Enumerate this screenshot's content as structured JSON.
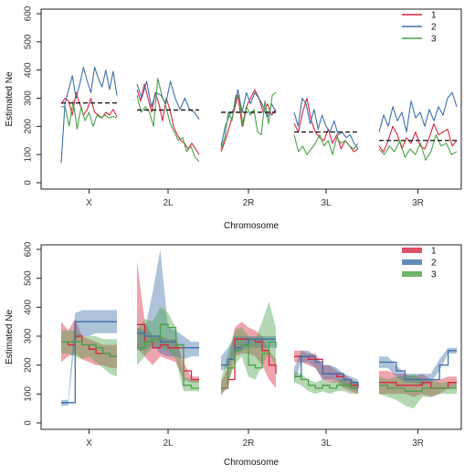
{
  "colors": {
    "1": "#d7263d",
    "2": "#3f6fa8",
    "3": "#4aa14a",
    "mean": "#111111"
  },
  "chart_data": [
    {
      "type": "line",
      "xlabel": "Chromosome",
      "ylabel": "Estimated Ne",
      "ylim": [
        0,
        600
      ],
      "yticks": [
        0,
        100,
        200,
        300,
        400,
        500,
        600
      ],
      "categories": [
        "X",
        "2L",
        "2R",
        "3L",
        "3R"
      ],
      "legend": {
        "placement": "top-right",
        "entries": [
          "1",
          "2",
          "3"
        ]
      },
      "series": [
        {
          "name": "1",
          "segments": [
            [
              280,
              300,
              290,
              240,
              320,
              280,
              240,
              260,
              300,
              250,
              240,
              230,
              250,
              240,
              260,
              235
            ],
            [
              330,
              290,
              350,
              300,
              250,
              320,
              280,
              220,
              300,
              260,
              200,
              170,
              150,
              140,
              120,
              140,
              120,
              100
            ],
            [
              110,
              150,
              200,
              250,
              310,
              200,
              270,
              300,
              330,
              300,
              250,
              280,
              240,
              260
            ],
            [
              210,
              180,
              250,
              300,
              220,
              180,
              160,
              150,
              190,
              140,
              170,
              120,
              150,
              130,
              110,
              120
            ],
            [
              130,
              110,
              150,
              200,
              170,
              120,
              160,
              140,
              180,
              130,
              120,
              160,
              210,
              170,
              180,
              190,
              130,
              150
            ]
          ]
        },
        {
          "name": "2",
          "segments": [
            [
              70,
              280,
              330,
              380,
              300,
              350,
              410,
              360,
              320,
              410,
              370,
              340,
              400,
              330,
              395,
              310
            ],
            [
              350,
              300,
              360,
              270,
              320,
              310,
              280,
              360,
              300,
              260,
              300,
              260,
              250,
              225
            ],
            [
              130,
              200,
              240,
              260,
              330,
              250,
              320,
              280,
              320,
              300,
              270,
              230,
              280,
              250
            ],
            [
              250,
              200,
              300,
              280,
              210,
              260,
              190,
              240,
              200,
              180,
              220,
              170,
              180,
              160,
              170,
              140,
              120
            ],
            [
              180,
              240,
              200,
              270,
              220,
              250,
              180,
              290,
              230,
              250,
              200,
              260,
              220,
              270,
              240,
              300,
              320,
              270
            ]
          ]
        },
        {
          "name": "3",
          "segments": [
            [
              270,
              270,
              200,
              290,
              190,
              270,
              220,
              250,
              200,
              240,
              230,
              240,
              230,
              235,
              230
            ],
            [
              310,
              250,
              270,
              250,
              200,
              370,
              310,
              270,
              210,
              180,
              150,
              160,
              110,
              130,
              90,
              75
            ],
            [
              120,
              160,
              250,
              220,
              310,
              300,
              200,
              270,
              240,
              260,
              180,
              170,
              290,
              210,
              310,
              320
            ],
            [
              170,
              110,
              130,
              100,
              120,
              140,
              170,
              130,
              150,
              100,
              160,
              140,
              150,
              130,
              120,
              140
            ],
            [
              120,
              100,
              130,
              110,
              150,
              90,
              120,
              100,
              140,
              80,
              110,
              170,
              130,
              140,
              100,
              110
            ]
          ]
        }
      ],
      "mean_lines": {
        "style": "dashed",
        "values": [
          283,
          258,
          250,
          180,
          150
        ]
      }
    },
    {
      "type": "area",
      "xlabel": "Chromosome",
      "ylabel": "Estimated Ne",
      "ylim": [
        0,
        600
      ],
      "yticks": [
        0,
        100,
        200,
        300,
        400,
        500,
        600
      ],
      "categories": [
        "X",
        "2L",
        "2R",
        "3L",
        "3R"
      ],
      "legend": {
        "placement": "top-right",
        "entries": [
          "1",
          "2",
          "3"
        ]
      },
      "series": [
        {
          "name": "1",
          "segments": [
            {
              "mid": [
                280,
                270,
                300,
                270,
                255,
                240,
                240,
                230,
                230
              ],
              "lo": [
                210,
                230,
                240,
                220,
                210,
                200,
                200,
                190,
                190
              ],
              "hi": [
                350,
                320,
                360,
                300,
                290,
                280,
                270,
                270,
                270
              ]
            },
            {
              "mid": [
                340,
                280,
                260,
                270,
                260,
                260,
                180,
                150,
                150
              ],
              "lo": [
                260,
                230,
                200,
                230,
                220,
                210,
                150,
                140,
                140
              ],
              "hi": [
                560,
                350,
                300,
                300,
                290,
                290,
                210,
                160,
                160
              ]
            },
            {
              "mid": [
                120,
                150,
                290,
                290,
                290,
                280,
                250,
                200,
                170
              ],
              "lo": [
                100,
                120,
                230,
                240,
                240,
                230,
                200,
                150,
                120
              ],
              "hi": [
                140,
                190,
                330,
                350,
                330,
                320,
                300,
                250,
                220
              ]
            },
            {
              "mid": [
                230,
                230,
                220,
                220,
                170,
                170,
                160,
                150,
                130,
                120
              ],
              "lo": [
                210,
                210,
                200,
                190,
                150,
                140,
                140,
                120,
                110,
                100
              ],
              "hi": [
                250,
                250,
                240,
                240,
                200,
                200,
                180,
                170,
                150,
                140
              ]
            },
            {
              "mid": [
                140,
                140,
                130,
                130,
                130,
                140,
                120,
                120,
                140,
                140
              ],
              "lo": [
                100,
                100,
                100,
                100,
                90,
                100,
                90,
                100,
                120,
                120
              ],
              "hi": [
                180,
                180,
                170,
                170,
                160,
                170,
                150,
                150,
                160,
                160
              ]
            }
          ]
        },
        {
          "name": "2",
          "segments": [
            {
              "mid": [
                70,
                70,
                350,
                350,
                350,
                350,
                350,
                350,
                350
              ],
              "lo": [
                60,
                60,
                290,
                300,
                300,
                310,
                310,
                310,
                310
              ],
              "hi": [
                80,
                80,
                380,
                390,
                390,
                390,
                390,
                390,
                390
              ]
            },
            {
              "mid": [
                310,
                300,
                300,
                280,
                280,
                270,
                260,
                260,
                260
              ],
              "lo": [
                250,
                250,
                270,
                240,
                230,
                230,
                220,
                230,
                230
              ],
              "hi": [
                330,
                320,
                450,
                600,
                330,
                320,
                300,
                280,
                280
              ]
            },
            {
              "mid": [
                200,
                220,
                260,
                270,
                290,
                290,
                290,
                290,
                290
              ],
              "lo": [
                180,
                190,
                240,
                250,
                260,
                260,
                260,
                260,
                260
              ],
              "hi": [
                230,
                260,
                300,
                300,
                300,
                300,
                300,
                300,
                300
              ]
            },
            {
              "mid": [
                160,
                230,
                230,
                210,
                170,
                170,
                170,
                150,
                140,
                130
              ],
              "lo": [
                140,
                210,
                210,
                190,
                150,
                150,
                150,
                130,
                120,
                110
              ],
              "hi": [
                190,
                250,
                250,
                230,
                200,
                200,
                190,
                170,
                160,
                150
              ]
            },
            {
              "mid": [
                210,
                210,
                180,
                150,
                150,
                150,
                150,
                200,
                250,
                250
              ],
              "lo": [
                190,
                190,
                160,
                140,
                140,
                130,
                140,
                180,
                240,
                240
              ],
              "hi": [
                230,
                230,
                200,
                170,
                170,
                170,
                170,
                220,
                260,
                260
              ]
            }
          ]
        },
        {
          "name": "3",
          "segments": [
            {
              "mid": [
                280,
                280,
                280,
                270,
                270,
                260,
                240,
                230,
                230
              ],
              "lo": [
                240,
                240,
                230,
                220,
                230,
                210,
                190,
                170,
                160
              ],
              "hi": [
                320,
                320,
                320,
                300,
                300,
                300,
                290,
                290,
                290
              ]
            },
            {
              "mid": [
                260,
                280,
                290,
                340,
                330,
                270,
                130,
                120,
                120
              ],
              "lo": [
                200,
                230,
                260,
                260,
                250,
                220,
                110,
                110,
                110
              ],
              "hi": [
                320,
                360,
                350,
                400,
                380,
                330,
                160,
                150,
                150
              ]
            },
            {
              "mid": [
                120,
                190,
                250,
                270,
                200,
                190,
                240,
                280,
                260
              ],
              "lo": [
                90,
                140,
                200,
                230,
                160,
                150,
                200,
                240,
                190
              ],
              "hi": [
                150,
                240,
                320,
                330,
                300,
                290,
                350,
                420,
                330
              ]
            },
            {
              "mid": [
                160,
                150,
                130,
                120,
                130,
                120,
                130,
                130,
                120,
                120
              ],
              "lo": [
                140,
                130,
                110,
                100,
                110,
                100,
                110,
                110,
                100,
                100
              ],
              "hi": [
                180,
                170,
                150,
                140,
                150,
                140,
                150,
                150,
                140,
                140
              ]
            },
            {
              "mid": [
                130,
                120,
                120,
                110,
                110,
                120,
                120,
                120,
                120,
                120
              ],
              "lo": [
                100,
                90,
                80,
                60,
                50,
                90,
                90,
                100,
                100,
                100
              ],
              "hi": [
                160,
                150,
                160,
                160,
                170,
                150,
                150,
                140,
                140,
                140
              ]
            }
          ]
        }
      ]
    }
  ]
}
